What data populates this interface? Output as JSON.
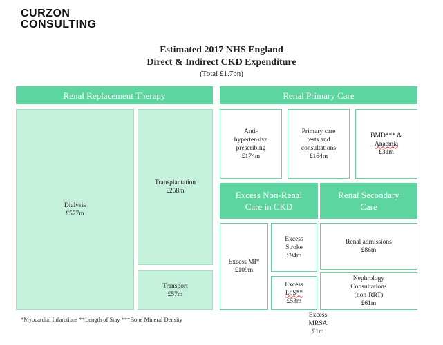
{
  "logo": {
    "line1": "CURZON",
    "line2": "CONSULTING"
  },
  "title": {
    "line1": "Estimated 2017 NHS England",
    "line2": "Direct & Indirect CKD Expenditure",
    "total": "(Total £1.7bn)"
  },
  "headers": {
    "rrt": "Renal Replacement Therapy",
    "rpc": "Renal Primary Care",
    "excess_non_renal": [
      "Excess Non-Renal",
      "Care in CKD"
    ],
    "renal_secondary": [
      "Renal Secondary",
      "Care"
    ]
  },
  "boxes": {
    "dialysis": {
      "name": "Dialysis",
      "value": "£577m"
    },
    "transplantation": {
      "name": "Transplantation",
      "value": "£258m"
    },
    "transport": {
      "name": "Transport",
      "value": "£57m"
    },
    "antihypertensive": {
      "lines": [
        "Anti-",
        "hypertensive",
        "prescribing"
      ],
      "value": "£174m"
    },
    "primary_care": {
      "lines": [
        "Primary care",
        "tests and",
        "consultations"
      ],
      "value": "£164m"
    },
    "bmd": {
      "line1": "BMD*** &",
      "line2": "Anaemia",
      "value": "£31m"
    },
    "excess_mi": {
      "name": "Excess MI*",
      "value": "£109m"
    },
    "excess_stroke": {
      "lines": [
        "Excess",
        "Stroke"
      ],
      "value": "£94m"
    },
    "excess_los": {
      "line1": "Excess",
      "line2": "LoS**",
      "value": "£53m"
    },
    "excess_mrsa": {
      "lines": [
        "Excess",
        "MRSA"
      ],
      "value": "£1m"
    },
    "renal_admissions": {
      "name": "Renal admissions",
      "value": "£86m"
    },
    "nephrology": {
      "lines": [
        "Nephrology",
        "Consultations",
        "(non-RRT)"
      ],
      "value": "£61m"
    }
  },
  "footnote": "*Myocardial Infarctions **Length of Stay ***Bone Mineral Density",
  "colors": {
    "header": "#5dd5a0",
    "rrt_fill": "#c5f0dc",
    "outline": "#5dd5a0"
  }
}
